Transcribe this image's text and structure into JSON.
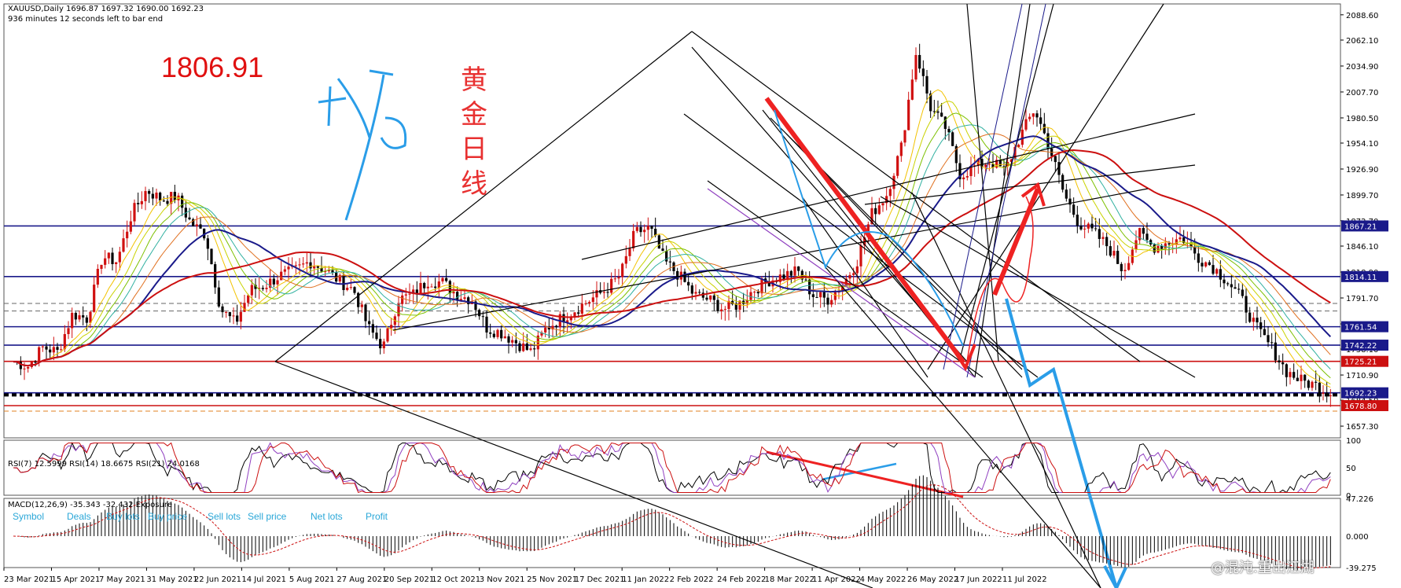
{
  "header": {
    "line1": "XAUUSD,Daily   1696.87 1697.32 1690.00 1692.23",
    "line2": "936 minutes 12 seconds left to bar end"
  },
  "annotations": {
    "price": "1806.91",
    "chinese": "黄金日线",
    "watermark": "@混沌.重出江湖"
  },
  "indicators": {
    "rsi_label": "RSI(7) 12.5999  RSI(14) 18.6675  RSI(21) 24.0168",
    "macd_label": "MACD(12,26,9) -35.343 -32.432  Exposure",
    "exposure_columns": [
      "Symbol",
      "Deals",
      "Buy lots",
      "Buy price",
      "Sell lots",
      "Sell price",
      "Net lots",
      "Profit"
    ]
  },
  "colors": {
    "up_candle": "#d01010",
    "down_candle": "#000000",
    "hline_blue": "#1a1a8a",
    "hline_red": "#cc1010",
    "arrow_red": "#ee2222",
    "arrow_blue": "#2a9de8",
    "box_blue": "#1060d0"
  },
  "chart_data": {
    "type": "candlestick",
    "symbol": "XAUUSD",
    "timeframe": "Daily",
    "ylim": [
      1645,
      2100
    ],
    "y_ticks": [
      2088.6,
      2062.1,
      2034.9,
      2007.7,
      1980.5,
      1954.1,
      1926.9,
      1899.7,
      1872.7,
      1846.1,
      1818.9,
      1791.7,
      1764.5,
      1738.1,
      1710.9,
      1684.5,
      1657.3
    ],
    "price_labels": [
      {
        "value": 1867.21,
        "label": "1867.21",
        "color": "#1a1a8a"
      },
      {
        "value": 1814.11,
        "label": "1814.11",
        "color": "#1a1a8a"
      },
      {
        "value": 1761.54,
        "label": "1761.54",
        "color": "#1a1a8a"
      },
      {
        "value": 1742.22,
        "label": "1742.22",
        "color": "#1a1a8a"
      },
      {
        "value": 1725.21,
        "label": "1725.21",
        "color": "#cc1010"
      },
      {
        "value": 1692.23,
        "label": "1692.23",
        "color": "#1a1a8a"
      },
      {
        "value": 1678.8,
        "label": "1678.80",
        "color": "#cc1010"
      }
    ],
    "x_labels": [
      "23 Mar 2021",
      "15 Apr 2021",
      "7 May 2021",
      "31 May 2021",
      "22 Jun 2021",
      "14 Jul 2021",
      "5 Aug 2021",
      "27 Aug 2021",
      "20 Sep 2021",
      "12 Oct 2021",
      "3 Nov 2021",
      "25 Nov 2021",
      "17 Dec 2021",
      "11 Jan 2022",
      "2 Feb 2022",
      "24 Feb 2022",
      "18 Mar 2022",
      "11 Apr 2022",
      "4 May 2022",
      "26 May 2022",
      "17 Jun 2022",
      "11 Jul 2022"
    ],
    "close_path": [
      [
        1725,
        1720
      ],
      [
        1740,
        1735
      ],
      [
        1775,
        1770
      ],
      [
        1835,
        1830
      ],
      [
        1880,
        1905
      ],
      [
        1895,
        1898
      ],
      [
        1870,
        1858
      ],
      [
        1780,
        1765
      ],
      [
        1800,
        1805
      ],
      [
        1815,
        1820
      ],
      [
        1830,
        1822
      ],
      [
        1810,
        1800
      ],
      [
        1760,
        1740
      ],
      [
        1790,
        1795
      ],
      [
        1810,
        1808
      ],
      [
        1795,
        1790
      ],
      [
        1760,
        1755
      ],
      [
        1745,
        1735
      ],
      [
        1760,
        1770
      ],
      [
        1780,
        1790
      ],
      [
        1800,
        1815
      ],
      [
        1860,
        1865
      ],
      [
        1830,
        1815
      ],
      [
        1795,
        1790
      ],
      [
        1780,
        1785
      ],
      [
        1800,
        1810
      ],
      [
        1815,
        1820
      ],
      [
        1795,
        1790
      ],
      [
        1805,
        1830
      ],
      [
        1880,
        1900
      ],
      [
        1950,
        2050
      ],
      [
        1990,
        1970
      ],
      [
        1920,
        1930
      ],
      [
        1935,
        1925
      ],
      [
        1960,
        1990
      ],
      [
        1950,
        1900
      ],
      [
        1870,
        1860
      ],
      [
        1845,
        1820
      ],
      [
        1860,
        1845
      ],
      [
        1850,
        1855
      ],
      [
        1835,
        1825
      ],
      [
        1810,
        1790
      ],
      [
        1760,
        1740
      ],
      [
        1715,
        1705
      ],
      [
        1700,
        1692
      ]
    ],
    "rsi": {
      "ylim": [
        0,
        100
      ],
      "ticks": [
        0,
        50,
        100
      ],
      "values": [
        12.5999,
        18.6675,
        24.0168
      ]
    },
    "macd": {
      "ticks": [
        47.226,
        0.0,
        -39.275
      ],
      "values": [
        -35.343,
        -32.432
      ]
    }
  }
}
